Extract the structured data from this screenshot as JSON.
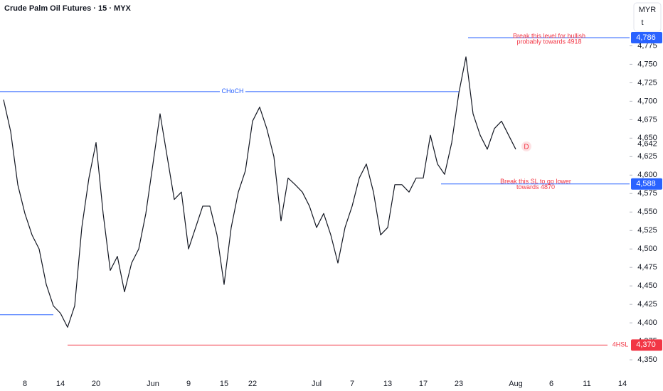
{
  "chart_data": {
    "type": "line",
    "title": "Crude Palm Oil Futures · 15 · MYX",
    "currency": "MYR",
    "unit": "t",
    "categories": [
      null,
      null,
      null,
      "8",
      null,
      null,
      null,
      null,
      "14",
      null,
      null,
      null,
      null,
      "20",
      null,
      null,
      null,
      null,
      null,
      null,
      null,
      "Jun",
      null,
      null,
      null,
      null,
      "9",
      null,
      null,
      null,
      null,
      "15",
      null,
      null,
      null,
      "22",
      null,
      null,
      null,
      null,
      null,
      null,
      null,
      null,
      "Jul",
      null,
      null,
      null,
      null,
      "7",
      null,
      null,
      null,
      null,
      "13",
      null,
      null,
      null,
      null,
      "17",
      null,
      null,
      null,
      null,
      "23",
      null,
      null,
      null,
      null,
      null,
      null,
      null,
      "Aug",
      null,
      null,
      null,
      null,
      "6",
      null,
      null,
      null,
      null,
      "11",
      null,
      null,
      null,
      null,
      "14"
    ],
    "series": [
      {
        "name": "Crude Palm Oil Futures",
        "color": "#131722",
        "values": [
          4702,
          4659,
          4587,
          4548,
          4519,
          4500,
          4452,
          4423,
          4413,
          4394,
          4423,
          4529,
          4596,
          4644,
          4548,
          4471,
          4490,
          4442,
          4481,
          4500,
          4548,
          4615,
          4683,
          4625,
          4567,
          4577,
          4500,
          4529,
          4558,
          4558,
          4519,
          4452,
          4529,
          4577,
          4606,
          4673,
          4692,
          4663,
          4625,
          4538,
          4596,
          4587,
          4577,
          4558,
          4529,
          4548,
          4519,
          4481,
          4529,
          4558,
          4596,
          4615,
          4577,
          4519,
          4529,
          4587,
          4587,
          4577,
          4596,
          4596,
          4654,
          4615,
          4601,
          4644,
          4711,
          4760,
          4683,
          4654,
          4635,
          4663,
          4673,
          4654,
          4635,
          null,
          null,
          null,
          null,
          null,
          null,
          null,
          null,
          null,
          null,
          null,
          null,
          null,
          null,
          null
        ]
      }
    ],
    "ylim": [
      4327,
      4837
    ],
    "yticks": [
      {
        "value": 4350,
        "label": "4,350"
      },
      {
        "value": 4375,
        "label": "4,375"
      },
      {
        "value": 4400,
        "label": "4,400"
      },
      {
        "value": 4425,
        "label": "4,425"
      },
      {
        "value": 4450,
        "label": "4,450"
      },
      {
        "value": 4475,
        "label": "4,475"
      },
      {
        "value": 4500,
        "label": "4,500"
      },
      {
        "value": 4525,
        "label": "4,525"
      },
      {
        "value": 4550,
        "label": "4,550"
      },
      {
        "value": 4575,
        "label": "4,575"
      },
      {
        "value": 4600,
        "label": "4,600"
      },
      {
        "value": 4625,
        "label": "4,625"
      },
      {
        "value": 4650,
        "label": "4,650"
      },
      {
        "value": 4675,
        "label": "4,675"
      },
      {
        "value": 4700,
        "label": "4,700"
      },
      {
        "value": 4725,
        "label": "4,725"
      },
      {
        "value": 4750,
        "label": "4,750"
      },
      {
        "value": 4775,
        "label": "4,775"
      }
    ],
    "current_price": {
      "value": 4642,
      "label": "4,642"
    },
    "levels": [
      {
        "value": 4786,
        "value_label": "4,786",
        "color": "#2962ff",
        "note": [
          "Break this level for bullish",
          "probably towards 4918"
        ]
      },
      {
        "value": 4713,
        "color": "#2962ff",
        "name": "CHoCH"
      },
      {
        "value": 4588,
        "value_label": "4,588",
        "color": "#2962ff",
        "note": [
          "Break this SL to go lower",
          "towards 4870"
        ]
      },
      {
        "value": 4411,
        "color": "#2962ff"
      },
      {
        "value": 4370,
        "value_label": "4,370",
        "color": "#f23645",
        "name": "4HSL"
      }
    ],
    "marker": "D"
  }
}
